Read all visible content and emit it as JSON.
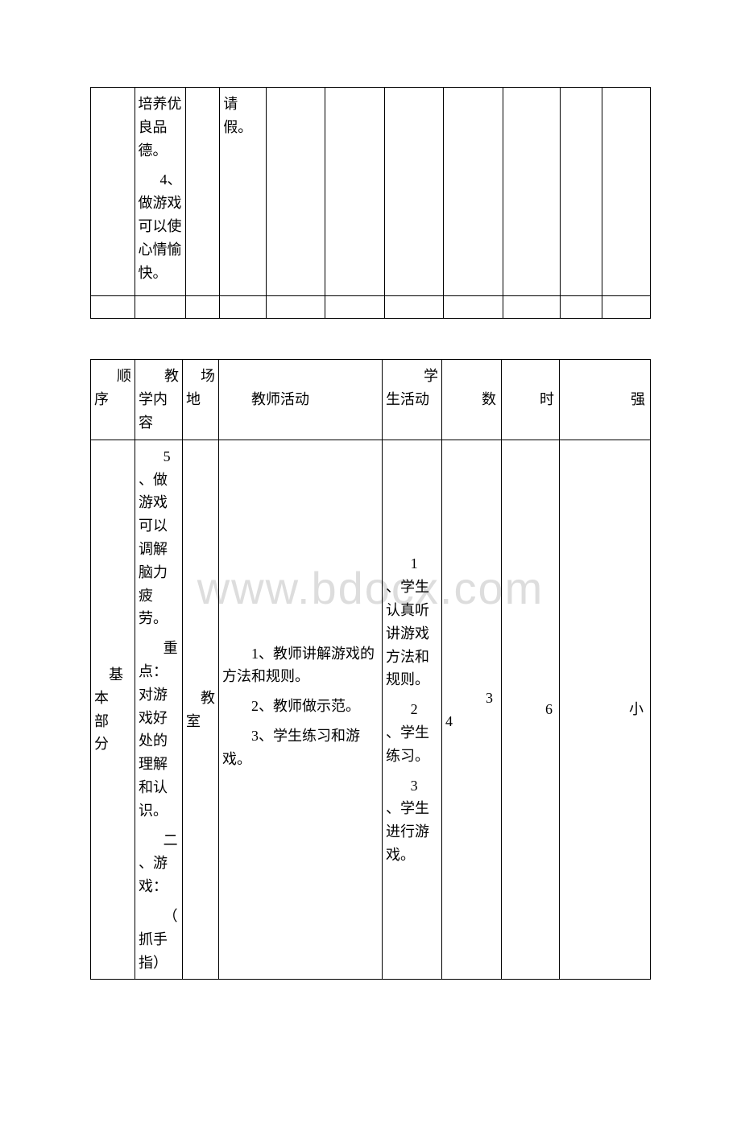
{
  "watermark": "www.bdocx.com",
  "table1": {
    "row1": {
      "c2a": "培养优良品德。",
      "c2b": "4、做游戏可以使心情愉快。",
      "c4": "请假。"
    }
  },
  "table2": {
    "header": {
      "c1": "顺序",
      "c2": "教学内容",
      "c3": "场地",
      "c4_5": "教师活动",
      "c6": "学生活动",
      "c7": "数",
      "c8": "时",
      "c9": "强"
    },
    "body": {
      "c1": "基本部分",
      "c2a": "5、做游戏可以调解脑力疲劳。",
      "c2b": "重点：对游戏好处的理解和认识。",
      "c2c": "二、游戏：",
      "c2d": "（抓手指）",
      "c3": "教室",
      "c4_5a": "1、教师讲解游戏的方法和规则。",
      "c4_5b": "2、教师做示范。",
      "c4_5c": "3、学生练习和游戏。",
      "c6a": "1、学生认真听讲游戏方法和规则。",
      "c6b": "2、学生练习。",
      "c6c": "3、学生进行游戏。",
      "c7": "3  4",
      "c8": "6",
      "c9": "小"
    }
  }
}
